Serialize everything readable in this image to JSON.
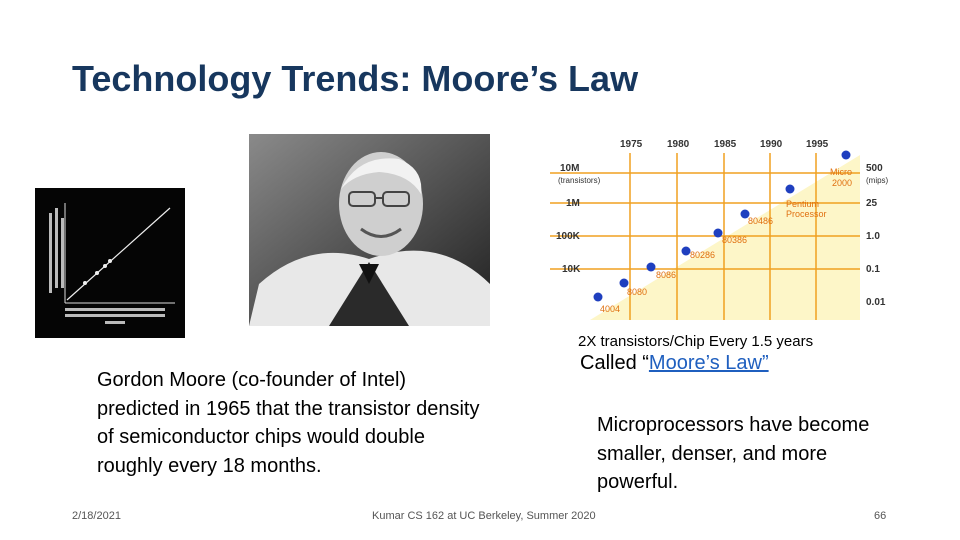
{
  "slide": {
    "title": "Technology Trends: Moore’s Law",
    "caption_growth": "2X transistors/Chip Every 1.5 years",
    "called_prefix": "Called “",
    "called_link": "Moore’s Law”",
    "gordon_text": "Gordon Moore (co-founder of Intel) predicted in 1965 that the transistor density of semiconductor chips would double roughly every 18 months.",
    "micro_text": "Microprocessors have become smaller, denser, and more powerful."
  },
  "footer": {
    "date": "2/18/2021",
    "course": "Kumar CS 162 at UC Berkeley, Summer 2020",
    "page": "66"
  },
  "chart": {
    "years": [
      "1975",
      "1980",
      "1985",
      "1990",
      "1995"
    ],
    "left_ticks": [
      "10M",
      "(transistors)",
      "1M",
      "100K",
      "10K"
    ],
    "right_ticks": [
      "500",
      "(mips)",
      "25",
      "1.0",
      "0.1",
      "0.01"
    ],
    "points": [
      "4004",
      "8080",
      "8086",
      "80286",
      "80386",
      "80486",
      "Pentium",
      "Processor",
      "Micro",
      "2000"
    ],
    "colors": {
      "accent": "#f0a020",
      "bg": "#fdf6c8",
      "dot": "#1f3fbf"
    }
  }
}
